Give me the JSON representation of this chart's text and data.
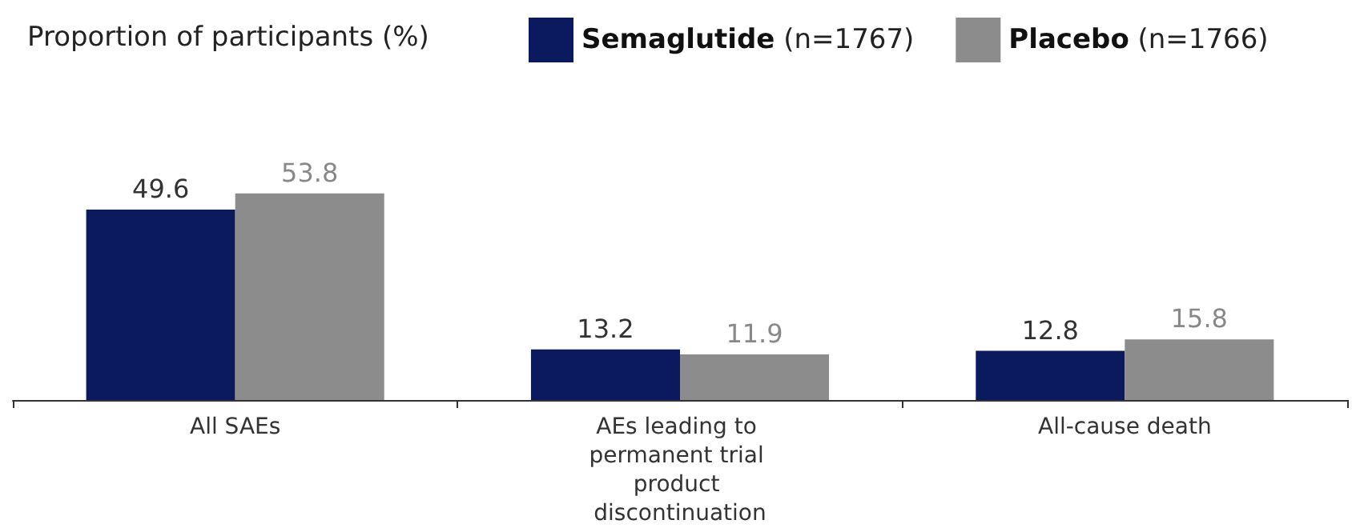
{
  "chart_data": {
    "type": "bar",
    "annotations": [
      "Proportion of participants (%)"
    ],
    "categories": [
      "All SAEs",
      "AEs leading to permanent trial product discontinuation",
      "All-cause death"
    ],
    "series": [
      {
        "name": "Semaglutide (n=1767)",
        "color": "#0b1a5e",
        "values": [
          49.6,
          13.2,
          12.8
        ]
      },
      {
        "name": "Placebo (n=1766)",
        "color": "#8c8c8c",
        "values": [
          53.8,
          11.9,
          15.8
        ]
      }
    ],
    "data_labels": true,
    "legend": "top",
    "grid": false
  }
}
